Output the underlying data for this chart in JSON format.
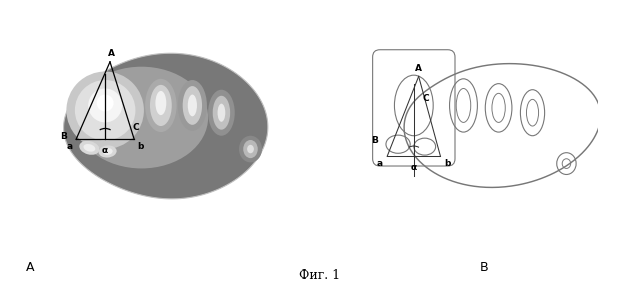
{
  "fig_label": "Фиг. 1",
  "panel_a_label": "A",
  "panel_b_label": "B",
  "bg_color": "#ffffff",
  "ct_bg": "#1a1a1a",
  "line_color_b": "#777777",
  "annotation_color_a": "#000000",
  "annotation_color_b": "#000000"
}
